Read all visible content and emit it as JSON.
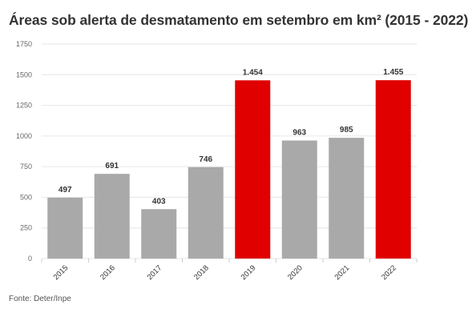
{
  "chart_data": {
    "type": "bar",
    "title": "Áreas sob alerta de desmatamento em setembro em km² (2015 - 2022)",
    "source": "Fonte: Deter/Inpe",
    "categories": [
      "2015",
      "2016",
      "2017",
      "2018",
      "2019",
      "2020",
      "2021",
      "2022"
    ],
    "values": [
      497,
      691,
      403,
      746,
      1454,
      963,
      985,
      1455
    ],
    "data_labels": [
      "497",
      "691",
      "403",
      "746",
      "1.454",
      "963",
      "985",
      "1.455"
    ],
    "highlighted": [
      false,
      false,
      false,
      false,
      true,
      false,
      false,
      true
    ],
    "ylim": [
      0,
      1750
    ],
    "yticks": [
      0,
      250,
      500,
      750,
      1000,
      1250,
      1500,
      1750
    ],
    "ytick_labels": [
      "0",
      "250",
      "500",
      "750",
      "1000",
      "1250",
      "1500",
      "1750"
    ],
    "xlabel": "",
    "ylabel": "",
    "grid": true,
    "legend": "none",
    "colors": {
      "bar": "#a9a9a9",
      "highlight": "#e00000",
      "grid": "#e6e6e6"
    }
  }
}
